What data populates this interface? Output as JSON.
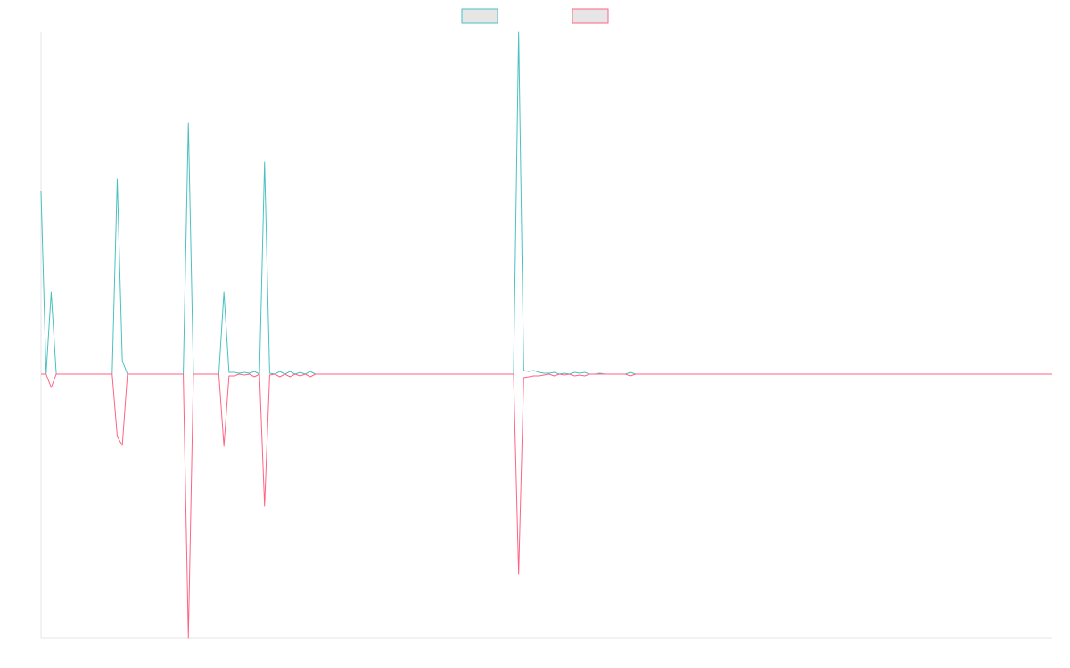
{
  "chart_data": {
    "type": "line",
    "ylim": [
      -296,
      384
    ],
    "series": [
      {
        "color": "#4bc0c0",
        "values": [
          205,
          0,
          92,
          0,
          0,
          0,
          0,
          0,
          0,
          0,
          0,
          0,
          0,
          0,
          0,
          219,
          15,
          0,
          0,
          0,
          0,
          0,
          0,
          0,
          0,
          0,
          0,
          0,
          0,
          282,
          0,
          0,
          0,
          0,
          0,
          0,
          92,
          2,
          2,
          1,
          2,
          1,
          3,
          0,
          238,
          1,
          0,
          3,
          0,
          3,
          0,
          2,
          0,
          3,
          0,
          0,
          0,
          0,
          0,
          0,
          0,
          0,
          0,
          0,
          0,
          0,
          0,
          0,
          0,
          0,
          0,
          0,
          0,
          0,
          0,
          0,
          0,
          0,
          0,
          0,
          0,
          0,
          0,
          0,
          0,
          0,
          0,
          0,
          0,
          0,
          0,
          0,
          0,
          0,
          384,
          4,
          3,
          4,
          2,
          1,
          1,
          2,
          0,
          1,
          0,
          2,
          1,
          2,
          0,
          0,
          1,
          0,
          0,
          0,
          0,
          0,
          2,
          0,
          0,
          0,
          0,
          0,
          0,
          0,
          0,
          0,
          0,
          0,
          0,
          0,
          0,
          0,
          0,
          0,
          0,
          0,
          0,
          0,
          0,
          0,
          0,
          0,
          0,
          0,
          0,
          0,
          0,
          0,
          0,
          0,
          0,
          0,
          0,
          0,
          0,
          0,
          0,
          0,
          0,
          0,
          0,
          0,
          0,
          0,
          0,
          0,
          0,
          0,
          0,
          0,
          0,
          0,
          0,
          0,
          0,
          0,
          0,
          0,
          0,
          0,
          0,
          0,
          0,
          0,
          0,
          0,
          0,
          0,
          0,
          0,
          0,
          0,
          0,
          0,
          0,
          0,
          0,
          0,
          0,
          0
        ]
      },
      {
        "color": "#ff6384",
        "values": [
          0,
          0,
          -15,
          0,
          0,
          0,
          0,
          0,
          0,
          0,
          0,
          0,
          0,
          0,
          0,
          -70,
          -80,
          0,
          0,
          0,
          0,
          0,
          0,
          0,
          0,
          0,
          0,
          0,
          0,
          -296,
          0,
          0,
          0,
          0,
          0,
          0,
          -81,
          -2,
          -2,
          0,
          -1,
          0,
          -3,
          0,
          -148,
          -1,
          0,
          -3,
          0,
          -3,
          0,
          -2,
          0,
          -3,
          0,
          0,
          0,
          0,
          0,
          0,
          0,
          0,
          0,
          0,
          0,
          0,
          0,
          0,
          0,
          0,
          0,
          0,
          0,
          0,
          0,
          0,
          0,
          0,
          0,
          0,
          0,
          0,
          0,
          0,
          0,
          0,
          0,
          0,
          0,
          0,
          0,
          0,
          0,
          0,
          -225,
          -4,
          -3,
          -2,
          -2,
          -1,
          0,
          -2,
          0,
          -1,
          0,
          -2,
          -1,
          -2,
          0,
          0,
          0,
          0,
          0,
          0,
          0,
          0,
          -2,
          0,
          0,
          0,
          0,
          0,
          0,
          0,
          0,
          0,
          0,
          0,
          0,
          0,
          0,
          0,
          0,
          0,
          0,
          0,
          0,
          0,
          0,
          0,
          0,
          0,
          0,
          0,
          0,
          0,
          0,
          0,
          0,
          0,
          0,
          0,
          0,
          0,
          0,
          0,
          0,
          0,
          0,
          0,
          0,
          0,
          0,
          0,
          0,
          0,
          0,
          0,
          0,
          0,
          0,
          0,
          0,
          0,
          0,
          0,
          0,
          0,
          0,
          0,
          0,
          0,
          0,
          0,
          0,
          0,
          0,
          0,
          0,
          0,
          0,
          0,
          0,
          0,
          0,
          0,
          0,
          0,
          0,
          0
        ]
      }
    ]
  }
}
